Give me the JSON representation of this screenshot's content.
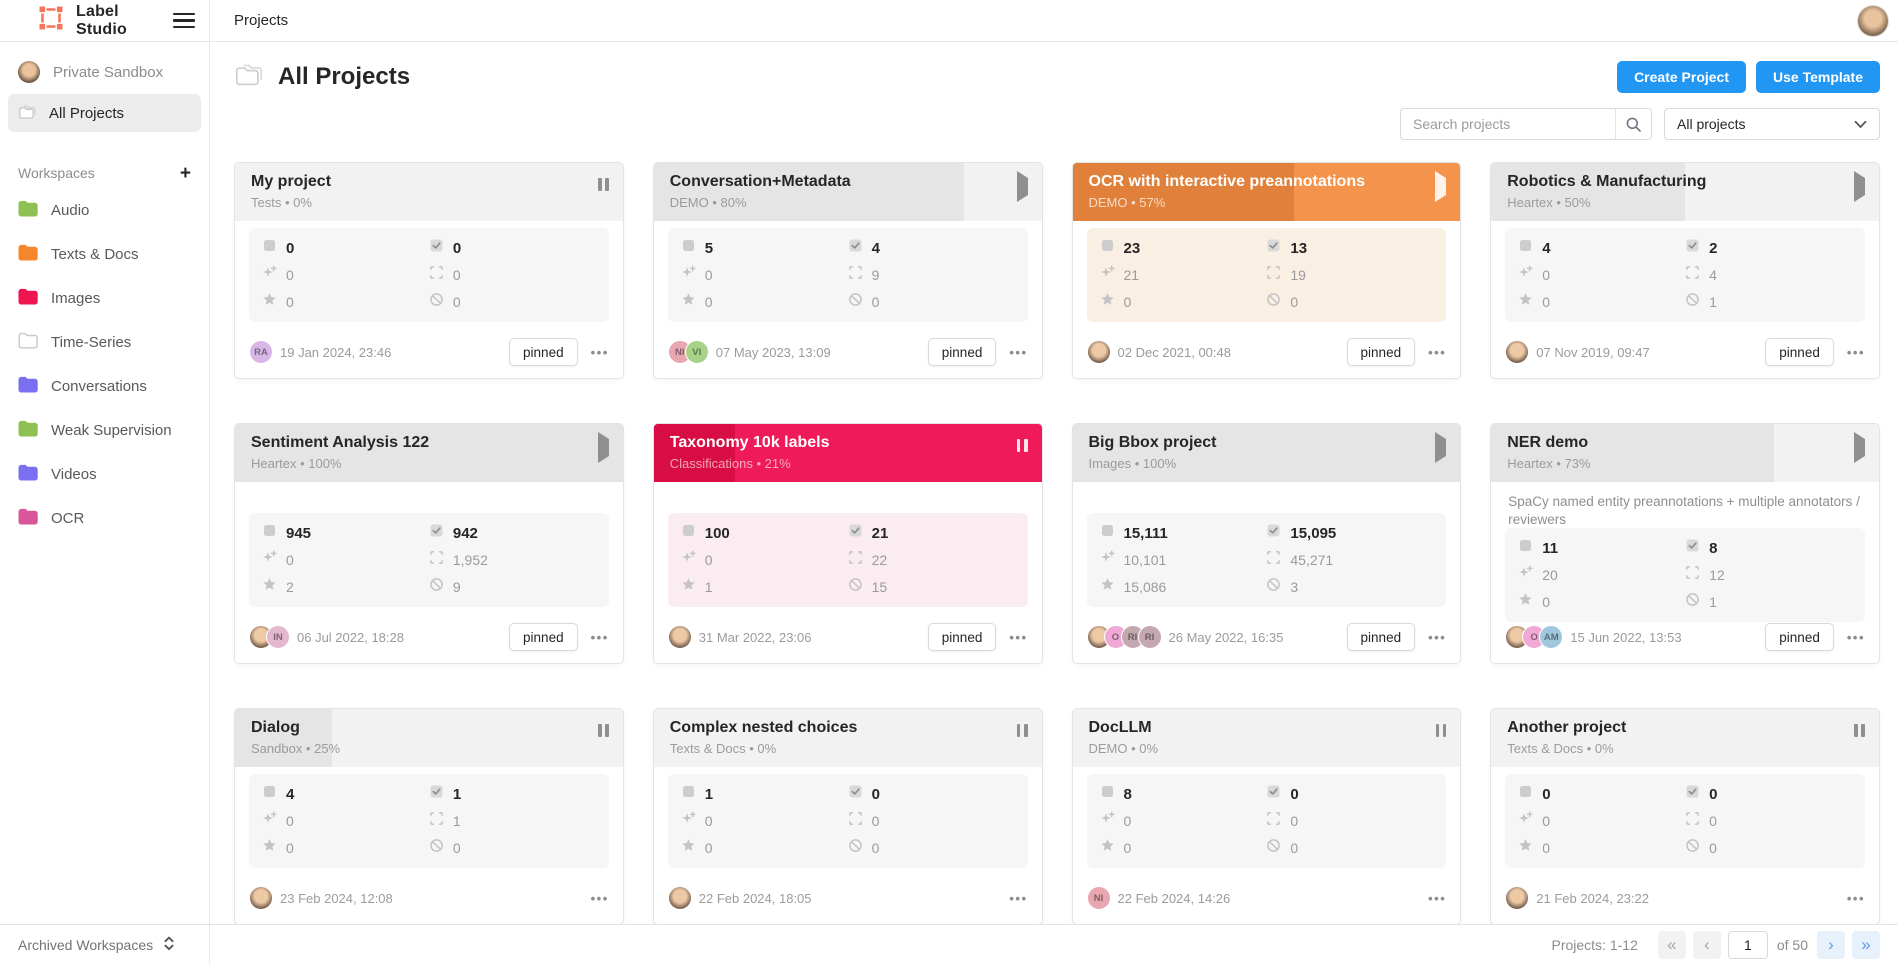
{
  "topbar": {
    "app_name": "Label Studio",
    "breadcrumb": "Projects"
  },
  "sidebar": {
    "user_label": "Private Sandbox",
    "all_projects_label": "All Projects",
    "workspaces_header": "Workspaces",
    "add_workspace_label": "+",
    "workspaces": [
      {
        "label": "Audio",
        "color": "#8DC153"
      },
      {
        "label": "Texts & Docs",
        "color": "#F6862B"
      },
      {
        "label": "Images",
        "color": "#EE1550"
      },
      {
        "label": "Time-Series",
        "color": "#FFFFFF"
      },
      {
        "label": "Conversations",
        "color": "#7A6FF0"
      },
      {
        "label": "Weak Supervision",
        "color": "#8DC153"
      },
      {
        "label": "Videos",
        "color": "#7A6FF0"
      },
      {
        "label": "OCR",
        "color": "#D9569B"
      }
    ],
    "archived_label": "Archived Workspaces"
  },
  "header": {
    "title": "All Projects",
    "create_button": "Create Project",
    "template_button": "Use Template",
    "search_placeholder": "Search projects",
    "filter_value": "All projects"
  },
  "themes": {
    "default": {
      "base": "#F2F2F2",
      "fill": "#E5E5E5",
      "statsBg": "#F6F6F6",
      "title": "#262626",
      "sub": "#9B9B9B",
      "icon": "#8F8F8F"
    },
    "orange": {
      "base": "#F4944C",
      "fill": "#E0803A",
      "statsBg": "#FAEFE3",
      "title": "#FFFFFF",
      "sub": "rgba(255,255,255,0.72)",
      "icon": "rgba(255,255,255,0.88)"
    },
    "red": {
      "base": "#EE1A5A",
      "fill": "#D90D45",
      "statsBg": "#FBECF1",
      "title": "#FFFFFF",
      "sub": "rgba(255,255,255,0.62)",
      "icon": "rgba(255,255,255,0.88)"
    }
  },
  "stat_icons": {
    "tasks": "square-icon",
    "completed": "check-icon",
    "predictions": "sparkles-icon",
    "annotations": "bbox-frame-icon",
    "starred": "star-icon",
    "skipped": "slash-circle-icon"
  },
  "pinned_label": "pinned",
  "dots_label": "•••",
  "cards": [
    {
      "title": "My project",
      "workspace": "Tests",
      "progress": 0,
      "theme": "default",
      "state": "paused",
      "description": "",
      "stats": {
        "tasks": "0",
        "completed": "0",
        "predictions": "0",
        "annotations": "0",
        "starred": "0",
        "skipped": "0"
      },
      "avatars": [
        {
          "type": "initials",
          "text": "RA",
          "color": "#D8B6E8"
        }
      ],
      "date": "19 Jan 2024, 23:46",
      "pinned": true
    },
    {
      "title": "Conversation+Metadata",
      "workspace": "DEMO",
      "progress": 80,
      "theme": "default",
      "state": "playing",
      "description": "",
      "stats": {
        "tasks": "5",
        "completed": "4",
        "predictions": "0",
        "annotations": "9",
        "starred": "0",
        "skipped": "0"
      },
      "avatars": [
        {
          "type": "initials",
          "text": "NI",
          "color": "#E8A7B0"
        },
        {
          "type": "initials",
          "text": "VI",
          "color": "#A6D388"
        }
      ],
      "date": "07 May 2023, 13:09",
      "pinned": true
    },
    {
      "title": "OCR with interactive preannotations",
      "workspace": "DEMO",
      "progress": 57,
      "theme": "orange",
      "state": "playing",
      "description": "",
      "stats": {
        "tasks": "23",
        "completed": "13",
        "predictions": "21",
        "annotations": "19",
        "starred": "0",
        "skipped": "0"
      },
      "avatars": [
        {
          "type": "photo"
        }
      ],
      "date": "02 Dec 2021, 00:48",
      "pinned": true
    },
    {
      "title": "Robotics & Manufacturing",
      "workspace": "Heartex",
      "progress": 50,
      "theme": "default",
      "state": "playing",
      "description": "",
      "stats": {
        "tasks": "4",
        "completed": "2",
        "predictions": "0",
        "annotations": "4",
        "starred": "0",
        "skipped": "1"
      },
      "avatars": [
        {
          "type": "photo"
        }
      ],
      "date": "07 Nov 2019, 09:47",
      "pinned": true
    },
    {
      "title": "Sentiment Analysis 122",
      "workspace": "Heartex",
      "progress": 100,
      "theme": "default",
      "state": "playing",
      "description": "",
      "stats": {
        "tasks": "945",
        "completed": "942",
        "predictions": "0",
        "annotations": "1,952",
        "starred": "2",
        "skipped": "9"
      },
      "avatars": [
        {
          "type": "photo"
        },
        {
          "type": "initials",
          "text": "IN",
          "color": "#E3B7CE"
        }
      ],
      "date": "06 Jul 2022, 18:28",
      "pinned": true
    },
    {
      "title": "Taxonomy 10k labels",
      "workspace": "Classifications",
      "progress": 21,
      "theme": "red",
      "state": "paused",
      "description": "",
      "stats": {
        "tasks": "100",
        "completed": "21",
        "predictions": "0",
        "annotations": "22",
        "starred": "1",
        "skipped": "15"
      },
      "avatars": [
        {
          "type": "photo"
        }
      ],
      "date": "31 Mar 2022, 23:06",
      "pinned": true
    },
    {
      "title": "Big Bbox project",
      "workspace": "Images",
      "progress": 100,
      "theme": "default",
      "state": "playing",
      "description": "",
      "stats": {
        "tasks": "15,111",
        "completed": "15,095",
        "predictions": "10,101",
        "annotations": "45,271",
        "starred": "15,086",
        "skipped": "3"
      },
      "avatars": [
        {
          "type": "photo"
        },
        {
          "type": "initials",
          "text": "O",
          "color": "#EFA9D4"
        },
        {
          "type": "initials",
          "text": "RI",
          "color": "#C3A8B0"
        },
        {
          "type": "initials",
          "text": "RI",
          "color": "#C3A8B0"
        }
      ],
      "date": "26 May 2022, 16:35",
      "pinned": true
    },
    {
      "title": "NER demo",
      "workspace": "Heartex",
      "progress": 73,
      "theme": "default",
      "state": "playing",
      "description": "SpaCy named entity preannotations + multiple annotators / reviewers",
      "stats": {
        "tasks": "11",
        "completed": "8",
        "predictions": "20",
        "annotations": "12",
        "starred": "0",
        "skipped": "1"
      },
      "avatars": [
        {
          "type": "photo"
        },
        {
          "type": "initials",
          "text": "O",
          "color": "#EFA9D4"
        },
        {
          "type": "initials",
          "text": "AM",
          "color": "#9FC7DE"
        }
      ],
      "date": "15 Jun 2022, 13:53",
      "pinned": true
    },
    {
      "title": "Dialog",
      "workspace": "Sandbox",
      "progress": 25,
      "theme": "default",
      "state": "paused",
      "description": "",
      "stats": {
        "tasks": "4",
        "completed": "1",
        "predictions": "0",
        "annotations": "1",
        "starred": "0",
        "skipped": "0"
      },
      "avatars": [
        {
          "type": "photo"
        }
      ],
      "date": "23 Feb 2024, 12:08",
      "pinned": false
    },
    {
      "title": "Complex nested choices",
      "workspace": "Texts & Docs",
      "progress": 0,
      "theme": "default",
      "state": "paused",
      "description": "",
      "stats": {
        "tasks": "1",
        "completed": "0",
        "predictions": "0",
        "annotations": "0",
        "starred": "0",
        "skipped": "0"
      },
      "avatars": [
        {
          "type": "photo"
        }
      ],
      "date": "22 Feb 2024, 18:05",
      "pinned": false
    },
    {
      "title": "DocLLM",
      "workspace": "DEMO",
      "progress": 0,
      "theme": "default",
      "state": "paused",
      "description": "",
      "stats": {
        "tasks": "8",
        "completed": "0",
        "predictions": "0",
        "annotations": "0",
        "starred": "0",
        "skipped": "0"
      },
      "avatars": [
        {
          "type": "initials",
          "text": "NI",
          "color": "#E8A7B0"
        }
      ],
      "date": "22 Feb 2024, 14:26",
      "pinned": false
    },
    {
      "title": "Another project",
      "workspace": "Texts & Docs",
      "progress": 0,
      "theme": "default",
      "state": "paused",
      "description": "",
      "stats": {
        "tasks": "0",
        "completed": "0",
        "predictions": "0",
        "annotations": "0",
        "starred": "0",
        "skipped": "0"
      },
      "avatars": [
        {
          "type": "photo"
        }
      ],
      "date": "21 Feb 2024, 23:22",
      "pinned": false
    }
  ],
  "footer": {
    "range_label": "Projects: 1-12",
    "page_value": "1",
    "page_of": "of 50"
  },
  "colors": {
    "accent_blue": "#2196F3",
    "brand_orange": "#F6745B",
    "card_orange": "#F4944C",
    "card_red": "#EE1A5A",
    "pager_blue": "#5C9DE8"
  }
}
